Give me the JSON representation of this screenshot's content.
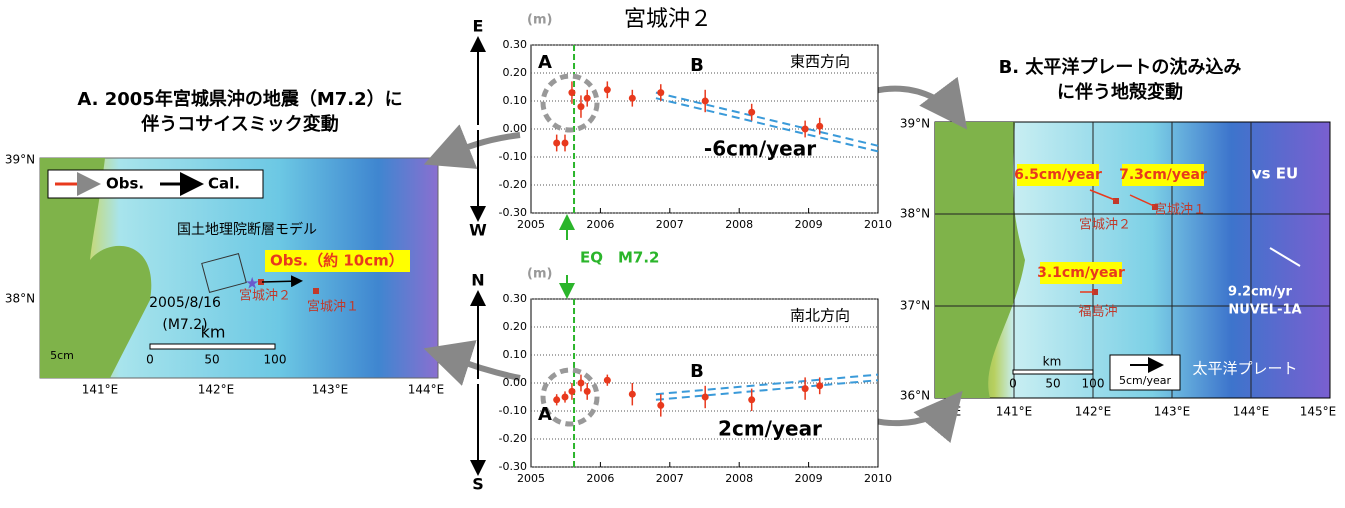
{
  "title": "宮城沖２",
  "eq": {
    "label": "EQ　M7.2",
    "x": 2005.62
  },
  "chart_data": [
    {
      "type": "scatter",
      "title": "東西方向",
      "y_label": "(m)",
      "dir_top": "E",
      "dir_bottom": "W",
      "x": [
        2005.37,
        2005.49,
        2005.59,
        2005.72,
        2005.81,
        2006.1,
        2006.46,
        2006.87,
        2007.51,
        2008.18,
        2008.95,
        2009.16
      ],
      "values": [
        -0.05,
        -0.05,
        0.13,
        0.08,
        0.11,
        0.14,
        0.11,
        0.13,
        0.1,
        0.06,
        0.0,
        0.01
      ],
      "errors": [
        0.03,
        0.03,
        0.04,
        0.04,
        0.03,
        0.03,
        0.03,
        0.03,
        0.04,
        0.03,
        0.03,
        0.03
      ],
      "color": "#e8391d",
      "trend": {
        "x": [
          2006.8,
          2010
        ],
        "upper": [
          0.13,
          -0.06
        ],
        "lower": [
          0.11,
          -0.08
        ],
        "color": "#3a9ad9"
      },
      "rate_label": "-6cm/year",
      "region_labels": [
        "A",
        "B"
      ],
      "xlim": [
        2005,
        2010
      ],
      "xticks": [
        2005,
        2006,
        2007,
        2008,
        2009,
        2010
      ],
      "ylim": [
        -0.3,
        0.3
      ],
      "yticks": [
        {
          "value": -0.3,
          "label": "-0.30"
        },
        {
          "value": -0.2,
          "label": "-0.20"
        },
        {
          "value": -0.1,
          "label": "-0.10"
        },
        {
          "value": 0,
          "label": "0.00"
        },
        {
          "value": 0.1,
          "label": "0.10"
        },
        {
          "value": 0.2,
          "label": "0.20"
        },
        {
          "value": 0.3,
          "label": "0.30"
        }
      ],
      "grid": true
    },
    {
      "type": "scatter",
      "title": "南北方向",
      "y_label": "(m)",
      "dir_top": "N",
      "dir_bottom": "S",
      "x": [
        2005.37,
        2005.49,
        2005.59,
        2005.72,
        2005.81,
        2006.1,
        2006.46,
        2006.87,
        2007.51,
        2008.18,
        2008.95,
        2009.16
      ],
      "values": [
        -0.06,
        -0.05,
        -0.03,
        0.0,
        -0.03,
        0.01,
        -0.04,
        -0.08,
        -0.05,
        -0.06,
        -0.02,
        -0.01
      ],
      "errors": [
        0.02,
        0.02,
        0.03,
        0.03,
        0.03,
        0.02,
        0.04,
        0.04,
        0.04,
        0.04,
        0.04,
        0.03
      ],
      "color": "#e8391d",
      "trend": {
        "x": [
          2006.8,
          2010
        ],
        "upper": [
          -0.04,
          0.03
        ],
        "lower": [
          -0.06,
          0.01
        ],
        "color": "#3a9ad9"
      },
      "rate_label": "2cm/year",
      "region_labels": [
        "A",
        "B"
      ],
      "xlim": [
        2005,
        2010
      ],
      "xticks": [
        2005,
        2006,
        2007,
        2008,
        2009,
        2010
      ],
      "ylim": [
        -0.3,
        0.3
      ],
      "yticks": [
        {
          "value": -0.3,
          "label": "-0.30"
        },
        {
          "value": -0.2,
          "label": "-0.20"
        },
        {
          "value": -0.1,
          "label": "-0.10"
        },
        {
          "value": 0,
          "label": "0.00"
        },
        {
          "value": 0.1,
          "label": "0.10"
        },
        {
          "value": 0.2,
          "label": "0.20"
        },
        {
          "value": 0.3,
          "label": "0.30"
        }
      ],
      "grid": true
    }
  ],
  "panel_a": {
    "title": [
      "A. 2005年宮城県沖の地震（M7.2）に",
      "伴うコサイスミック変動"
    ],
    "legend": [
      "Obs.",
      "Cal."
    ],
    "fault_model": "国土地理院断層モデル",
    "obs_note": "Obs.（約 10cm）",
    "quake": [
      "2005/8/16",
      "(M7.2)"
    ],
    "stations": [
      "宮城沖２",
      "宮城沖１"
    ],
    "scale": {
      "unit": "km",
      "ticks": [
        "0",
        "50",
        "100"
      ],
      "arrow": "5cm"
    },
    "lat": [
      "39°N",
      "38°N"
    ],
    "lon": [
      "141°E",
      "142°E",
      "143°E",
      "144°E"
    ]
  },
  "panel_b": {
    "title": [
      "B. 太平洋プレートの沈み込み",
      "に伴う地殻変動"
    ],
    "frame": "vs EU",
    "rates": [
      "6.5cm/year",
      "7.3cm/year",
      "3.1cm/year"
    ],
    "stations": [
      "宮城沖２",
      "宮城沖１",
      "福島沖"
    ],
    "plate_rate": [
      "9.2cm/yr",
      "NUVEL-1A"
    ],
    "plate": "太平洋プレート",
    "scale": {
      "unit": "km",
      "ticks": [
        "0",
        "50",
        "100"
      ],
      "arrow": "5cm/year"
    },
    "lat": [
      "39°N",
      "38°N",
      "37°N",
      "36°N"
    ],
    "lon": [
      "140°E",
      "141°E",
      "142°E",
      "143°E",
      "144°E",
      "145°E"
    ]
  }
}
